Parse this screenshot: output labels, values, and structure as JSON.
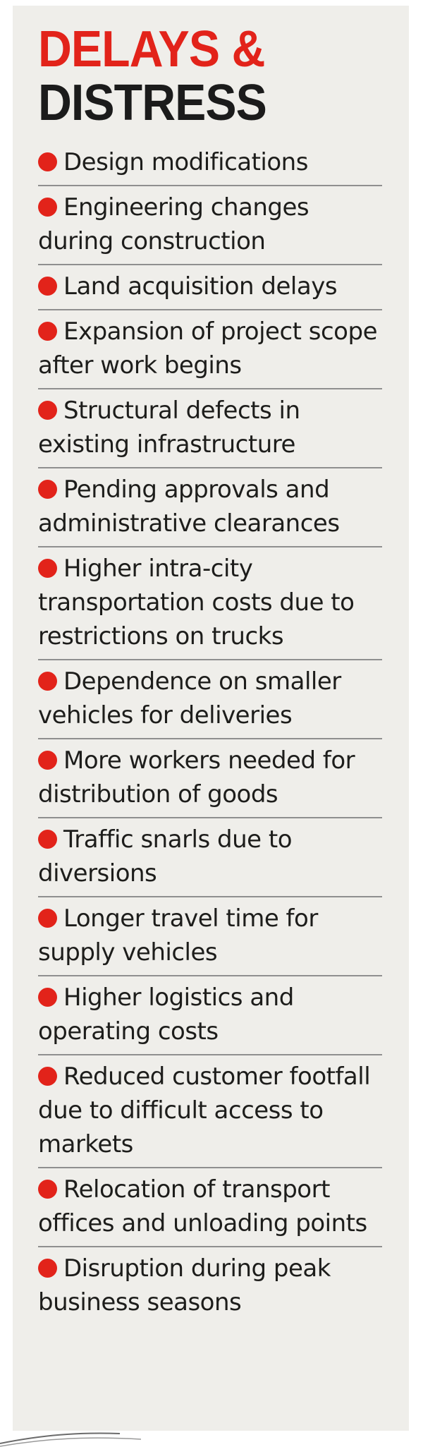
{
  "colors": {
    "accent_red": "#e2231a",
    "title_dark": "#1b1b1b",
    "panel_bg": "#efeeea",
    "rule": "#8f8f8f"
  },
  "header": {
    "line1": "DELAYS &",
    "line2": "DISTRESS"
  },
  "items": [
    "Design modifications",
    "Engineering changes during construction",
    "Land acquisition delays",
    "Expansion of project scope after work begins",
    "Structural defects in existing infrastructure",
    "Pending approvals and administrative clearances",
    "Higher intra-city transportation costs due to restrictions on trucks",
    "Dependence on smaller vehicles for deliveries",
    "More workers needed for distribution of goods",
    "Traffic snarls due to diversions",
    "Longer travel time for supply vehicles",
    "Higher logistics and operating costs",
    "Reduced customer footfall due to difficult access to markets",
    "Relocation of transport offices and unloading points",
    "Disruption during peak business seasons"
  ]
}
